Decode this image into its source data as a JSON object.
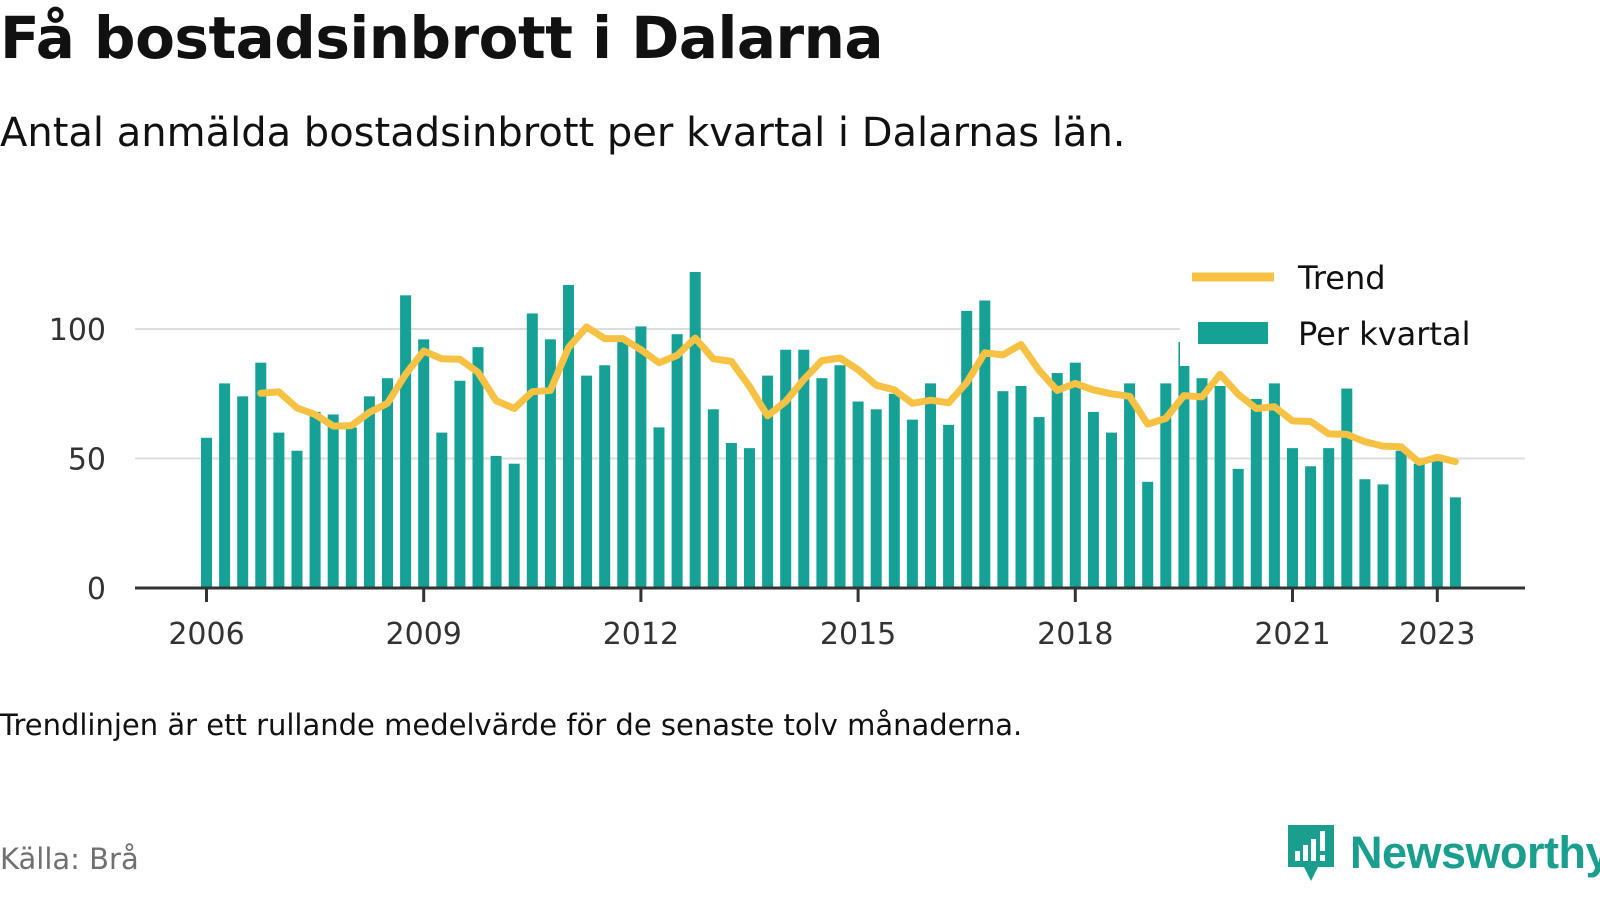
{
  "header": {
    "title": "Få bostadsinbrott i Dalarna",
    "subtitle": "Antal anmälda bostadsinbrott per kvartal i Dalarnas län."
  },
  "footer": {
    "note": "Trendlinjen är ett rullande medelvärde för de senaste tolv månaderna.",
    "source": "Källa: Brå",
    "brand": "Newsworthy"
  },
  "colors": {
    "bars": "#16a196",
    "trend": "#f7c244",
    "brand": "#1a9e8e"
  },
  "chart_data": {
    "type": "bar",
    "title": "Få bostadsinbrott i Dalarna",
    "subtitle": "Antal anmälda bostadsinbrott per kvartal i Dalarnas län.",
    "xlabel": "",
    "ylabel": "",
    "ylim": [
      0,
      125
    ],
    "yticks": [
      0,
      50,
      100
    ],
    "xticks": [
      "2006",
      "2009",
      "2012",
      "2015",
      "2018",
      "2021",
      "2023"
    ],
    "grid": true,
    "legend_position": "top-right",
    "categories": [
      "2006 Q1",
      "2006 Q2",
      "2006 Q3",
      "2006 Q4",
      "2007 Q1",
      "2007 Q2",
      "2007 Q3",
      "2007 Q4",
      "2008 Q1",
      "2008 Q2",
      "2008 Q3",
      "2008 Q4",
      "2009 Q1",
      "2009 Q2",
      "2009 Q3",
      "2009 Q4",
      "2010 Q1",
      "2010 Q2",
      "2010 Q3",
      "2010 Q4",
      "2011 Q1",
      "2011 Q2",
      "2011 Q3",
      "2011 Q4",
      "2012 Q1",
      "2012 Q2",
      "2012 Q3",
      "2012 Q4",
      "2013 Q1",
      "2013 Q2",
      "2013 Q3",
      "2013 Q4",
      "2014 Q1",
      "2014 Q2",
      "2014 Q3",
      "2014 Q4",
      "2015 Q1",
      "2015 Q2",
      "2015 Q3",
      "2015 Q4",
      "2016 Q1",
      "2016 Q2",
      "2016 Q3",
      "2016 Q4",
      "2017 Q1",
      "2017 Q2",
      "2017 Q3",
      "2017 Q4",
      "2018 Q1",
      "2018 Q2",
      "2018 Q3",
      "2018 Q4",
      "2019 Q1",
      "2019 Q2",
      "2019 Q3",
      "2019 Q4",
      "2020 Q1",
      "2020 Q2",
      "2020 Q3",
      "2020 Q4",
      "2021 Q1",
      "2021 Q2",
      "2021 Q3",
      "2021 Q4",
      "2022 Q1",
      "2022 Q2",
      "2022 Q3",
      "2022 Q4",
      "2023 Q1",
      "2023 Q2"
    ],
    "series": [
      {
        "name": "Per kvartal",
        "type": "bar",
        "values": [
          58,
          79,
          74,
          87,
          60,
          53,
          68,
          67,
          62,
          74,
          81,
          113,
          96,
          60,
          80,
          93,
          51,
          48,
          106,
          96,
          117,
          82,
          86,
          96,
          101,
          62,
          98,
          122,
          69,
          56,
          54,
          82,
          92,
          92,
          81,
          86,
          72,
          69,
          75,
          65,
          79,
          63,
          107,
          111,
          76,
          78,
          66,
          83,
          87,
          68,
          60,
          79,
          41,
          79,
          95,
          81,
          78,
          46,
          73,
          79,
          54,
          47,
          54,
          77,
          42,
          40,
          53,
          48,
          49,
          35
        ]
      },
      {
        "name": "Trend",
        "type": "line",
        "values": [
          null,
          null,
          null,
          75.2,
          75.7,
          69.5,
          67.0,
          62.5,
          62.7,
          67.8,
          71.3,
          82.5,
          91.5,
          88.5,
          88.3,
          83.3,
          72.3,
          69.3,
          75.8,
          76.3,
          92.8,
          100.8,
          96.3,
          96.3,
          92.0,
          87.0,
          89.8,
          96.5,
          88.5,
          87.5,
          77.8,
          66.5,
          72.0,
          80.5,
          87.8,
          88.8,
          84.3,
          78.3,
          76.5,
          71.3,
          72.5,
          71.5,
          79.3,
          90.8,
          90.0,
          94.0,
          84.0,
          76.3,
          79.0,
          76.5,
          75.0,
          74.0,
          63.3,
          65.5,
          74.3,
          73.8,
          82.5,
          74.8,
          69.3,
          70.0,
          64.5,
          64.3,
          59.5,
          59.3,
          56.5,
          54.8,
          54.5,
          48.5,
          50.5,
          48.8
        ]
      }
    ]
  }
}
